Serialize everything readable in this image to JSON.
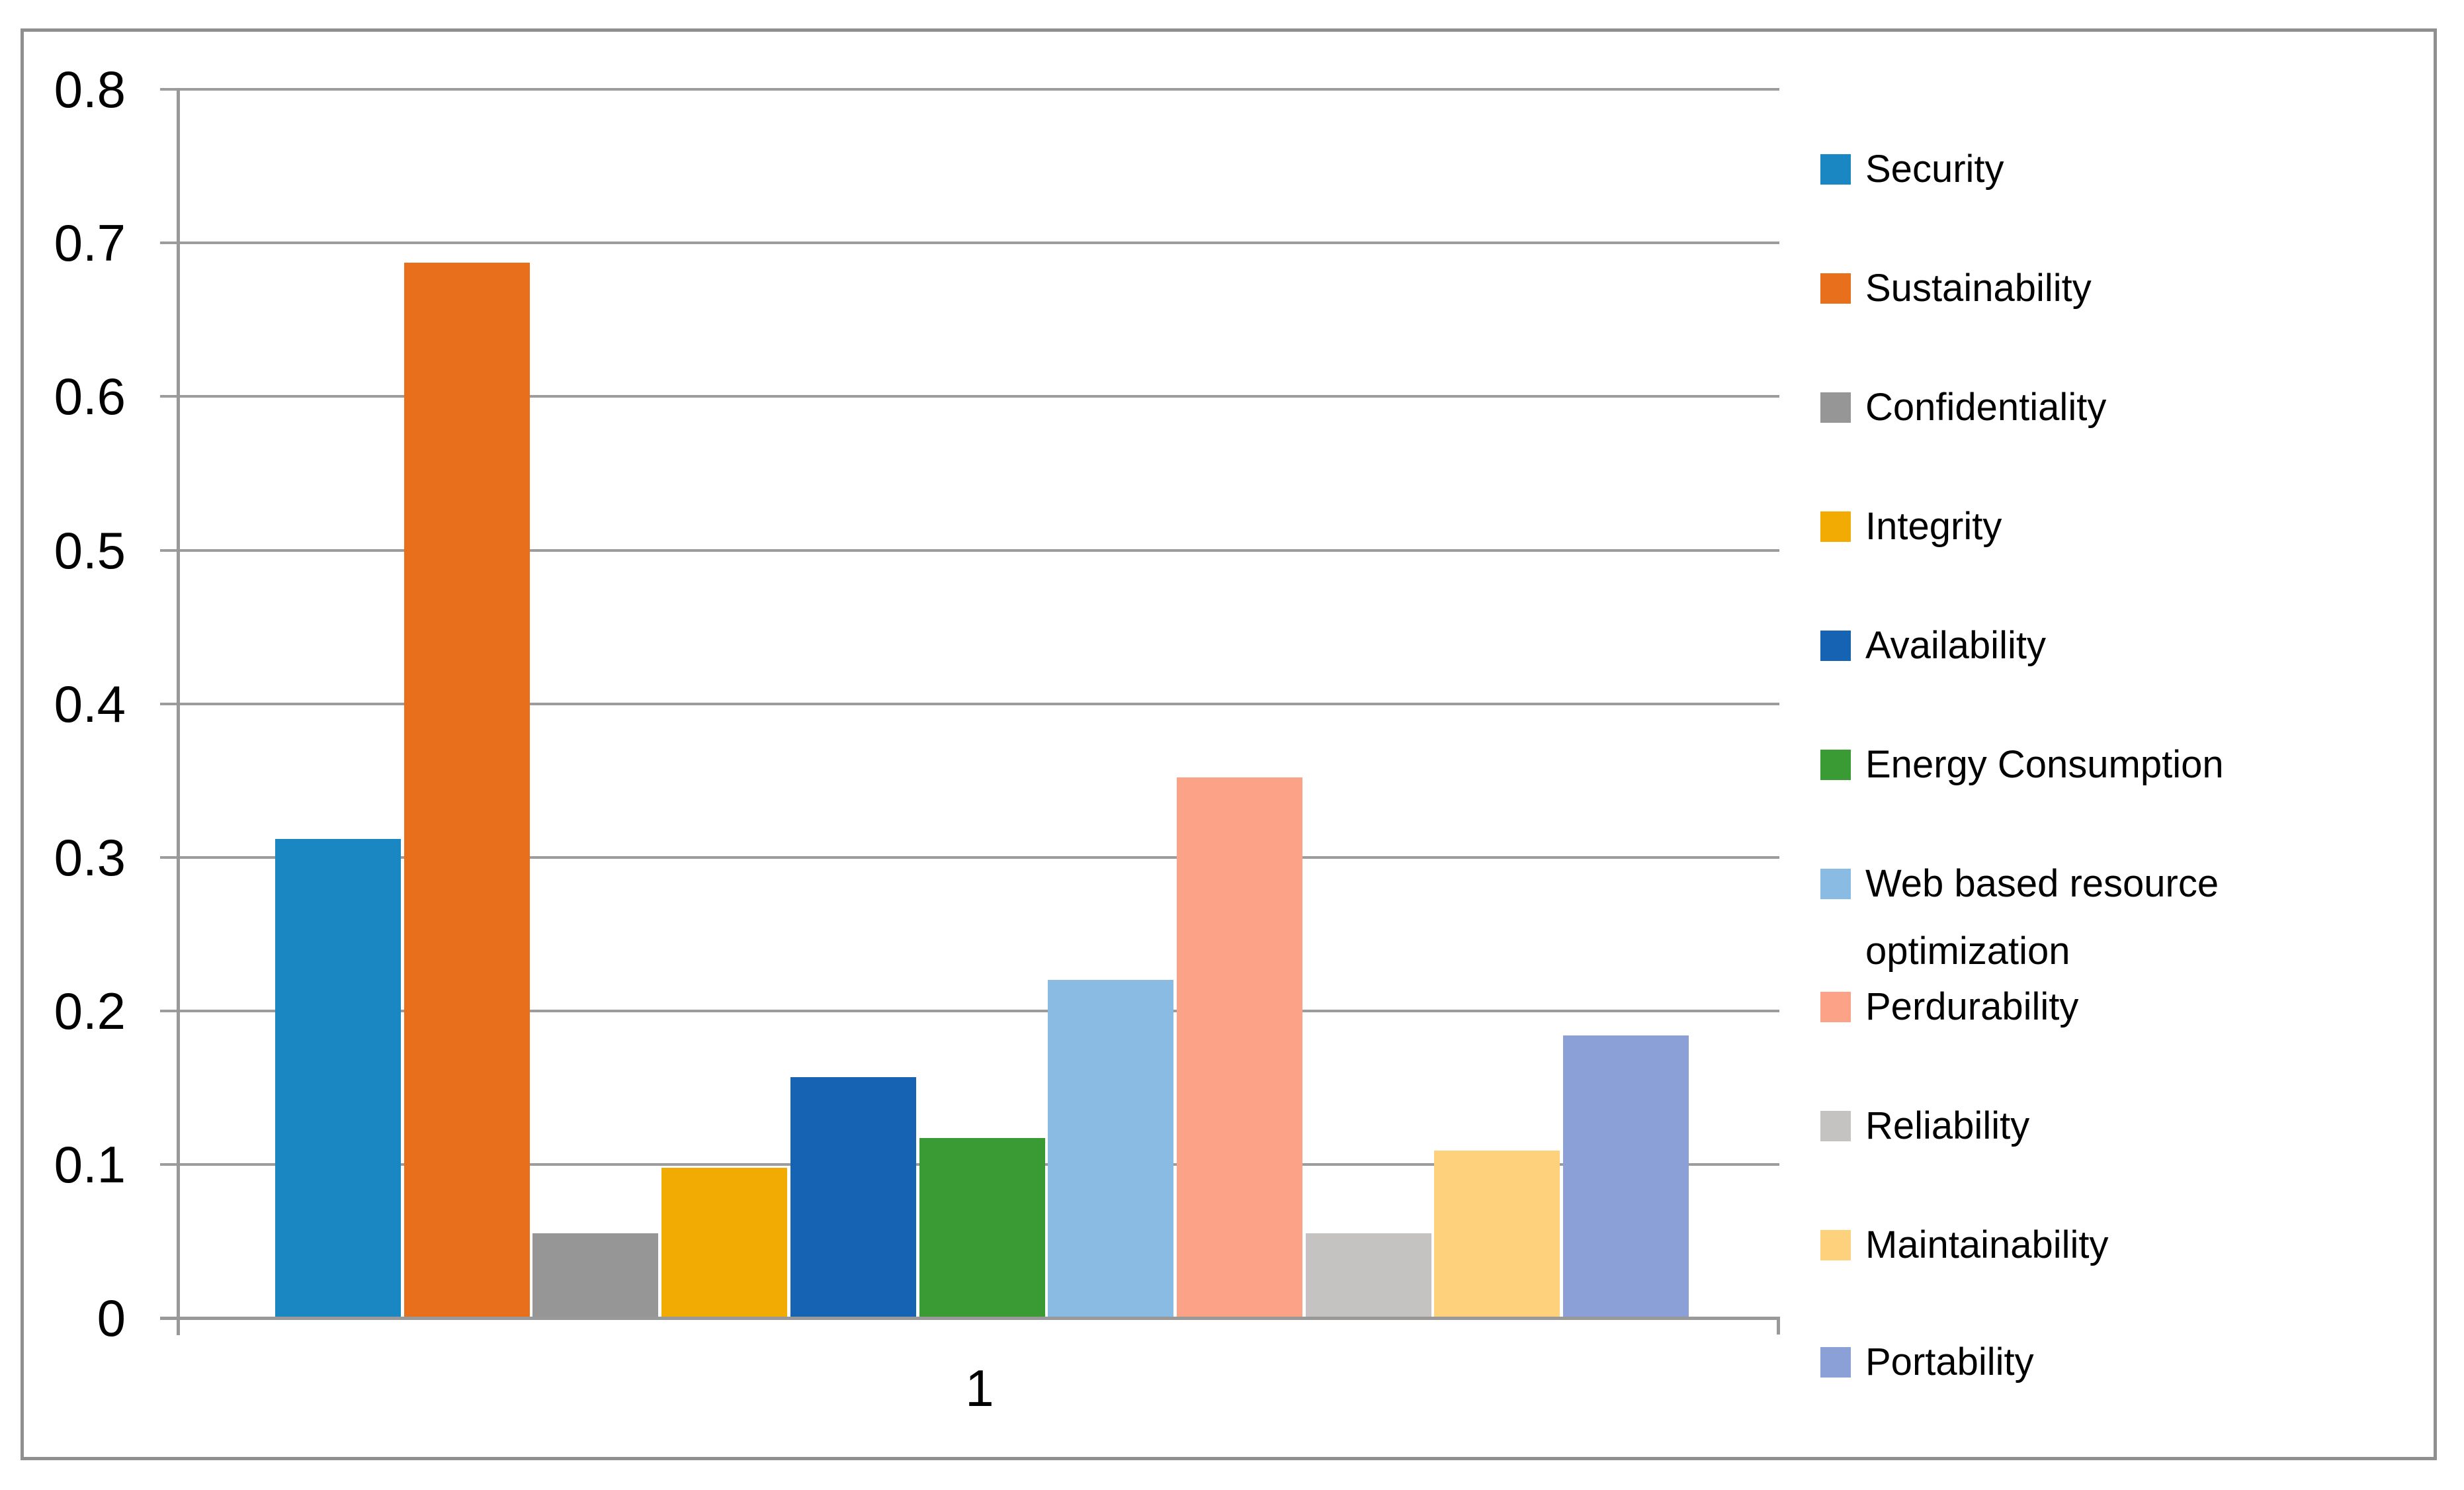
{
  "chart_data": {
    "type": "bar",
    "title": "",
    "categories": [
      "1"
    ],
    "series": [
      {
        "name": "Security",
        "value": 0.312,
        "color": "#1a86c2"
      },
      {
        "name": "Sustainability",
        "value": 0.687,
        "color": "#e8701c"
      },
      {
        "name": "Confidentiality",
        "value": 0.055,
        "color": "#969696"
      },
      {
        "name": "Integrity",
        "value": 0.098,
        "color": "#f2ab02"
      },
      {
        "name": "Availability",
        "value": 0.157,
        "color": "#1563b2"
      },
      {
        "name": "Energy Consumption",
        "value": 0.117,
        "color": "#3a9a34"
      },
      {
        "name": "Web based resource optimization",
        "value": 0.22,
        "color": "#8abbe2"
      },
      {
        "name": "Perdurability",
        "value": 0.352,
        "color": "#fca387"
      },
      {
        "name": "Reliability",
        "value": 0.055,
        "color": "#c4c3c2"
      },
      {
        "name": "Maintainability",
        "value": 0.109,
        "color": "#fed27d"
      },
      {
        "name": "Portability",
        "value": 0.184,
        "color": "#8ca0d8"
      }
    ],
    "y_ticks": [
      "0",
      "0.1",
      "0.2",
      "0.3",
      "0.4",
      "0.5",
      "0.6",
      "0.7",
      "0.8"
    ],
    "ylim": [
      0,
      0.8
    ],
    "xlabel": "",
    "ylabel": "",
    "grid": true,
    "legend_position": "right",
    "gridline_color": "#9c9c9c",
    "border_color": "#8f8f8f"
  }
}
